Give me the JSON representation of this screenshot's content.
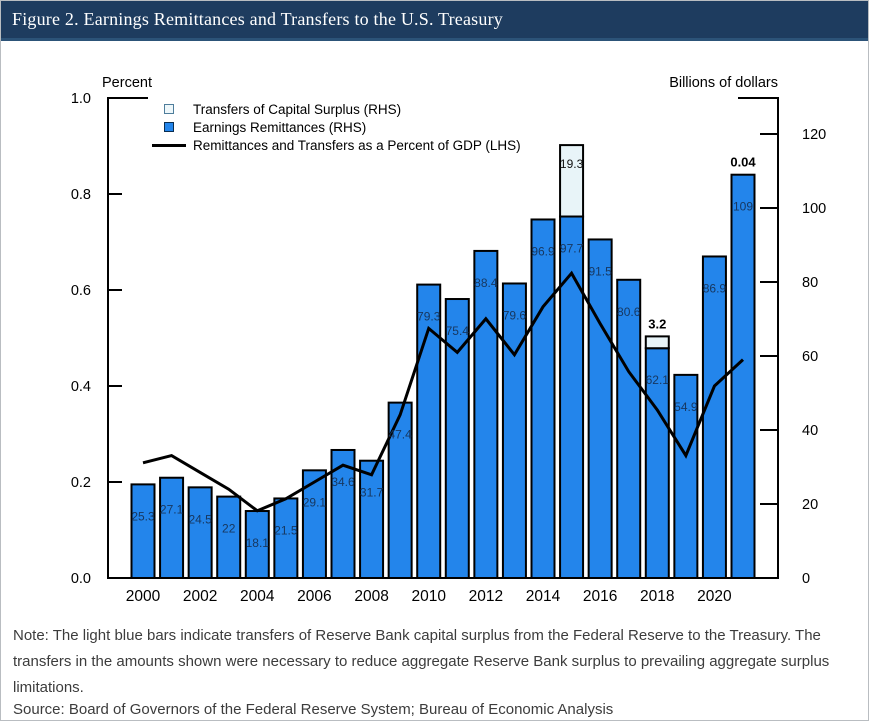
{
  "header": {
    "title": "Figure 2. Earnings Remittances and Transfers to the U.S. Treasury"
  },
  "chart_data": {
    "type": "bar",
    "title": "Figure 2. Earnings Remittances and Transfers to the U.S. Treasury",
    "grid": false,
    "x": [
      2000,
      2001,
      2002,
      2003,
      2004,
      2005,
      2006,
      2007,
      2008,
      2009,
      2010,
      2011,
      2012,
      2013,
      2014,
      2015,
      2016,
      2017,
      2018,
      2019,
      2020,
      2021
    ],
    "x_tick_labels": [
      "2000",
      "2002",
      "2004",
      "2006",
      "2008",
      "2010",
      "2012",
      "2014",
      "2016",
      "2018",
      "2020"
    ],
    "left_axis": {
      "label": "Percent",
      "ticks": [
        "0.0",
        "0.2",
        "0.4",
        "0.6",
        "0.8",
        "1.0"
      ],
      "range": [
        0,
        1.0
      ]
    },
    "right_axis": {
      "label": "Billions of dollars",
      "ticks": [
        "0",
        "20",
        "40",
        "60",
        "80",
        "100",
        "120"
      ],
      "range": [
        0,
        130
      ]
    },
    "series": [
      {
        "name": "Earnings Remittances (RHS)",
        "type": "bar",
        "axis": "right",
        "color": "#2385eb",
        "values": [
          25.3,
          27.1,
          24.5,
          22,
          18.1,
          21.5,
          29.1,
          34.6,
          31.7,
          47.4,
          79.3,
          75.4,
          88.4,
          79.6,
          96.9,
          97.7,
          91.5,
          80.6,
          62.1,
          54.9,
          86.9,
          109
        ],
        "labels": [
          "25.3",
          "27.1",
          "24.5",
          "22",
          "18.1",
          "21.5",
          "29.1",
          "34.6",
          "31.7",
          "47.4",
          "79.3",
          "75.4",
          "88.4",
          "79.6",
          "96.9",
          "97.7",
          "91.5",
          "80.6",
          "62.1",
          "54.9",
          "86.9",
          "109"
        ]
      },
      {
        "name": "Transfers of Capital Surplus (RHS)",
        "type": "bar-stacked",
        "axis": "right",
        "color": "#e8f4f8",
        "values": [
          0,
          0,
          0,
          0,
          0,
          0,
          0,
          0,
          0,
          0,
          0,
          0,
          0,
          0,
          0,
          19.3,
          0,
          0,
          3.2,
          0,
          0,
          0.04
        ],
        "value_labels": [
          {
            "index": 15,
            "text": "19.3",
            "position": "inside"
          },
          {
            "index": 18,
            "text": "3.2",
            "position": "above"
          },
          {
            "index": 21,
            "text": "0.04",
            "position": "above"
          }
        ]
      },
      {
        "name": "Remittances and Transfers as a Percent of GDP (LHS)",
        "type": "line",
        "axis": "left",
        "color": "#000000",
        "values": [
          0.24,
          0.255,
          0.22,
          0.185,
          0.14,
          0.165,
          0.2,
          0.235,
          0.215,
          0.34,
          0.52,
          0.47,
          0.54,
          0.465,
          0.565,
          0.635,
          0.53,
          0.43,
          0.35,
          0.255,
          0.4,
          0.455
        ]
      }
    ],
    "legend": {
      "position": "top-left",
      "items": [
        {
          "label": "Transfers of Capital Surplus (RHS)",
          "swatch": "light-square"
        },
        {
          "label": "Earnings Remittances (RHS)",
          "swatch": "blue-square"
        },
        {
          "label": "Remittances and Transfers as a Percent of GDP (LHS)",
          "swatch": "black-line"
        }
      ]
    }
  },
  "note": {
    "text": "Note: The light blue bars indicate transfers of Reserve Bank capital surplus from the Federal Reserve to the Treasury. The transfers in the amounts shown were necessary to reduce aggregate Reserve Bank surplus to prevailing aggregate surplus limitations."
  },
  "source": {
    "text": "Source: Board of Governors of the Federal Reserve System; Bureau of Economic Analysis"
  }
}
